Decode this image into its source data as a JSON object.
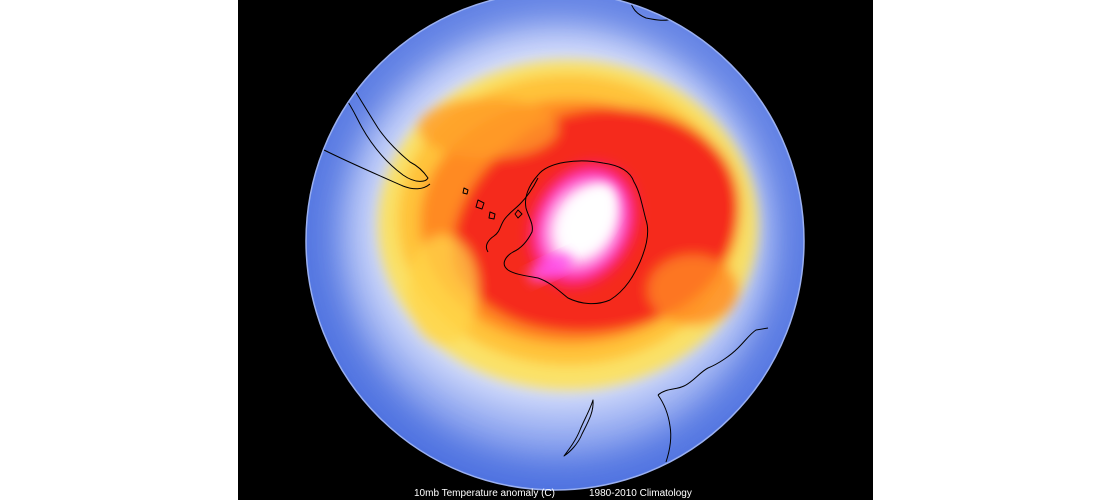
{
  "map": {
    "projection": "south-polar-stereographic",
    "colors": {
      "background": "#000000",
      "ocean_cold": "#4a6fe0",
      "neutral": "#ffffff",
      "warm_yellow": "#ffd23a",
      "warm_orange": "#ff7a1a",
      "warm_red": "#ee1b1b",
      "hot_magenta": "#ff00cc",
      "coastline": "#000000"
    }
  },
  "caption": {
    "field_label": "10mb Temperature anomaly (C)",
    "climatology_label": "1980-2010 Climatology"
  }
}
